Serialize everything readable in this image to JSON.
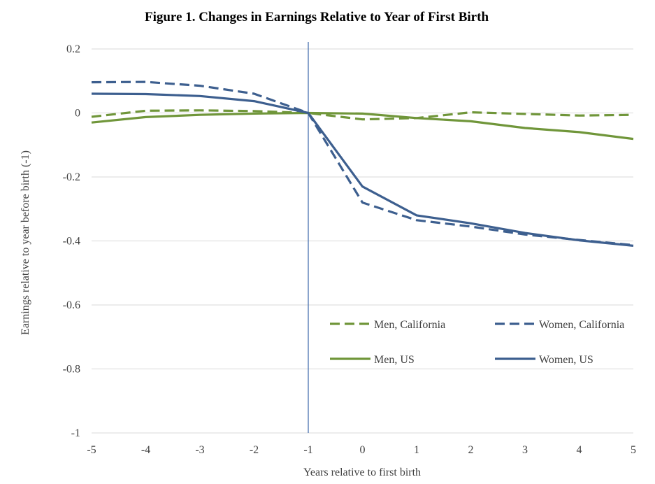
{
  "chart_data": {
    "type": "line",
    "title": "Figure 1. Changes in Earnings Relative to Year of First Birth",
    "xlabel": "Years relative to first birth",
    "ylabel": "Earnings relative to year before birth  (-1)",
    "xlim": [
      -5,
      5
    ],
    "ylim": [
      -1,
      0.2
    ],
    "x_ticks": [
      "-5",
      "-4",
      "-3",
      "-2",
      "-1",
      "0",
      "1",
      "2",
      "3",
      "4",
      "5"
    ],
    "y_ticks": [
      "0.2",
      "0",
      "-0.2",
      "-0.4",
      "-0.6",
      "-0.8",
      "-1"
    ],
    "grid": "horizontal",
    "vertical_reference_line": -1,
    "legend_position": "lower-right",
    "x": [
      -5,
      -4,
      -3,
      -2,
      -1,
      0,
      1,
      2,
      3,
      4,
      5
    ],
    "series": [
      {
        "name": "Men, California",
        "color": "#70963a",
        "style": "dashed",
        "values": [
          -0.012,
          0.007,
          0.008,
          0.006,
          0.0,
          -0.02,
          -0.016,
          0.002,
          -0.003,
          -0.008,
          -0.006
        ]
      },
      {
        "name": "Women, California",
        "color": "#3d5f8f",
        "style": "dashed",
        "values": [
          0.096,
          0.097,
          0.085,
          0.06,
          0.0,
          -0.28,
          -0.335,
          -0.355,
          -0.38,
          -0.397,
          -0.413
        ]
      },
      {
        "name": "Men, US",
        "color": "#70963a",
        "style": "solid",
        "values": [
          -0.03,
          -0.013,
          -0.006,
          -0.002,
          0.0,
          -0.002,
          -0.016,
          -0.026,
          -0.047,
          -0.06,
          -0.081
        ]
      },
      {
        "name": "Women, US",
        "color": "#3d5f8f",
        "style": "solid",
        "values": [
          0.06,
          0.059,
          0.053,
          0.037,
          0.0,
          -0.23,
          -0.32,
          -0.345,
          -0.375,
          -0.398,
          -0.415
        ]
      }
    ],
    "reference_line_color": "#4a72b0"
  }
}
